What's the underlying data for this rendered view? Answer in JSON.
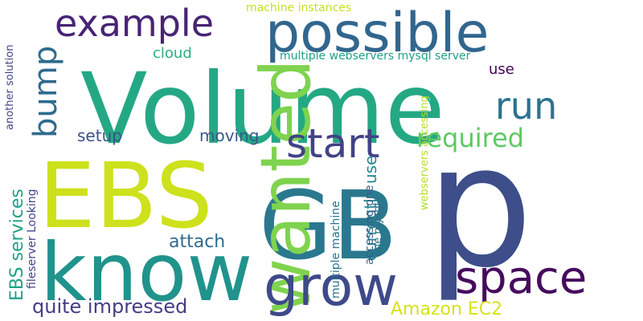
{
  "words": [
    {
      "text": "Volume",
      "color": "#24a884"
    },
    {
      "text": "p",
      "color": "#3d4e8a"
    },
    {
      "text": "GB",
      "color": "#2a788e"
    },
    {
      "text": "EBS",
      "color": "#cde11d"
    },
    {
      "text": "know",
      "color": "#20938c"
    },
    {
      "text": "wanted",
      "color": "#7fd34e"
    },
    {
      "text": "possible",
      "color": "#31668e"
    },
    {
      "text": "grow",
      "color": "#3e4a89"
    },
    {
      "text": "space",
      "color": "#460b5e"
    },
    {
      "text": "example",
      "color": "#482475"
    },
    {
      "text": "start",
      "color": "#414287"
    },
    {
      "text": "run",
      "color": "#2c728e"
    },
    {
      "text": "bump",
      "color": "#2f6b8e"
    },
    {
      "text": "required",
      "color": "#5ec962"
    },
    {
      "text": "quite impressed",
      "color": "#433d84"
    },
    {
      "text": "attach",
      "color": "#30698e"
    },
    {
      "text": "moving",
      "color": "#38588c"
    },
    {
      "text": "Amazon EC2",
      "color": "#d8e219"
    },
    {
      "text": "setup",
      "color": "#3b528b"
    },
    {
      "text": "cloud",
      "color": "#2ab07f"
    },
    {
      "text": "currently use",
      "color": "#25858e"
    },
    {
      "text": "EBS services",
      "color": "#1fa187"
    },
    {
      "text": "use",
      "color": "#440154"
    },
    {
      "text": "multiple webservers mysql server",
      "color": "#1fa088"
    },
    {
      "text": "machine instances",
      "color": "#c8e020"
    },
    {
      "text": "another solution",
      "color": "#3f4788"
    },
    {
      "text": "fileserver Looking",
      "color": "#404688"
    },
    {
      "text": "one mysql",
      "color": "#2e6d8e"
    },
    {
      "text": "multiple machine",
      "color": "#2a768e"
    },
    {
      "text": "accessing one",
      "color": "#365c8d"
    },
    {
      "text": "webservers accessing",
      "color": "#b5de2b"
    }
  ]
}
